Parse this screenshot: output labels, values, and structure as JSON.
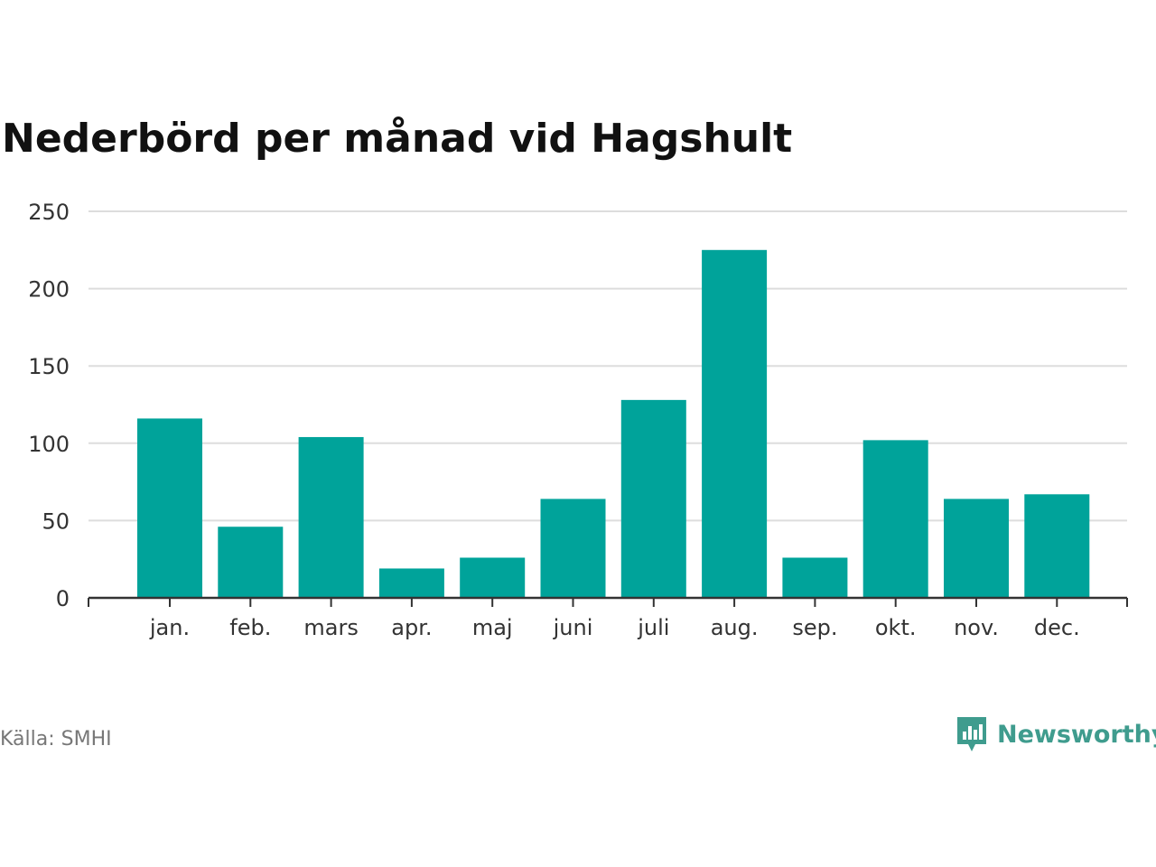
{
  "title": "Nederbörd per månad vid Hagshult",
  "source": "Källa: SMHI",
  "brand": {
    "name": "Newsworthy",
    "icon": "newsworthy-logo-icon",
    "color": "#3f9c8e"
  },
  "colors": {
    "bar": "#00a39a",
    "grid": "#dddddd",
    "axis": "#333333",
    "text": "#333333"
  },
  "chart_data": {
    "type": "bar",
    "categories": [
      "jan.",
      "feb.",
      "mars",
      "apr.",
      "maj",
      "juni",
      "juli",
      "aug.",
      "sep.",
      "okt.",
      "nov.",
      "dec."
    ],
    "values": [
      116,
      46,
      104,
      19,
      26,
      64,
      128,
      225,
      26,
      102,
      64,
      67
    ],
    "title": "Nederbörd per månad vid Hagshult",
    "xlabel": "",
    "ylabel": "",
    "ylim": [
      0,
      250
    ],
    "yticks": [
      0,
      50,
      100,
      150,
      200,
      250
    ],
    "grid": true,
    "legend": "none"
  }
}
